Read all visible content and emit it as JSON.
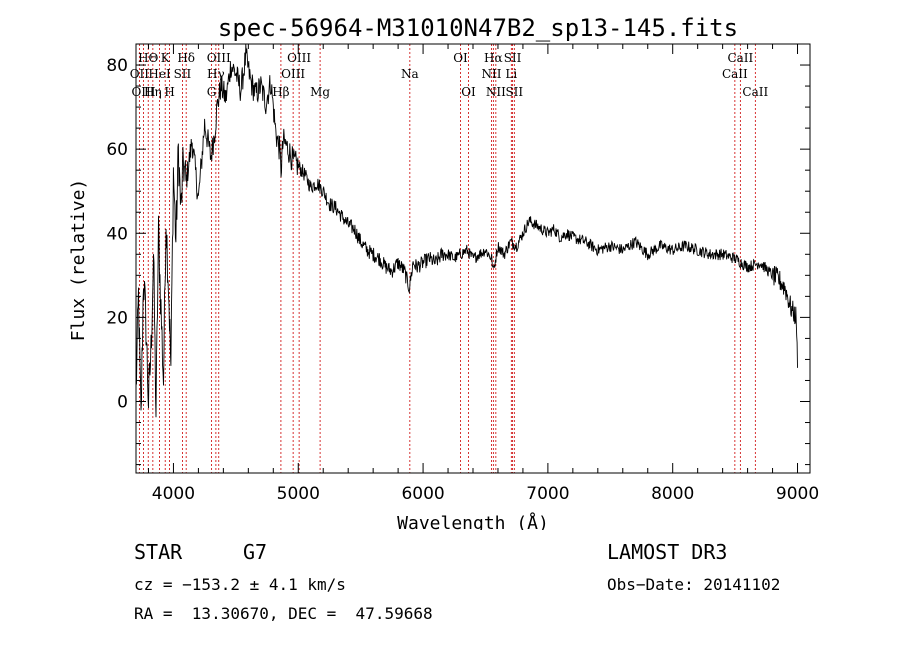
{
  "chart_data": {
    "type": "line",
    "title": "spec-56964-M31010N47B2_sp13-145.fits",
    "xlabel": "Wavelength (Å)",
    "ylabel": "Flux (relative)",
    "xlim": [
      3700,
      9100
    ],
    "ylim": [
      -17,
      85
    ],
    "x_ticks": [
      4000,
      5000,
      6000,
      7000,
      8000,
      9000
    ],
    "y_ticks": [
      0,
      20,
      40,
      60,
      80
    ],
    "series": [
      {
        "name": "flux",
        "x": [
          3700,
          3720,
          3740,
          3760,
          3780,
          3800,
          3820,
          3840,
          3860,
          3880,
          3900,
          3920,
          3940,
          3960,
          3980,
          4000,
          4020,
          4040,
          4060,
          4080,
          4100,
          4150,
          4200,
          4250,
          4300,
          4330,
          4350,
          4380,
          4420,
          4460,
          4500,
          4540,
          4580,
          4620,
          4660,
          4700,
          4740,
          4780,
          4820,
          4850,
          4862,
          4880,
          4920,
          4960,
          5000,
          5050,
          5100,
          5150,
          5200,
          5250,
          5300,
          5350,
          5400,
          5450,
          5500,
          5550,
          5600,
          5650,
          5700,
          5750,
          5800,
          5850,
          5890,
          5920,
          5950,
          6000,
          6050,
          6100,
          6150,
          6200,
          6250,
          6300,
          6350,
          6400,
          6450,
          6500,
          6550,
          6563,
          6600,
          6650,
          6700,
          6750,
          6800,
          6850,
          6900,
          6950,
          7000,
          7050,
          7100,
          7150,
          7200,
          7300,
          7400,
          7500,
          7600,
          7700,
          7800,
          7900,
          8000,
          8100,
          8200,
          8300,
          8400,
          8500,
          8600,
          8700,
          8800,
          8850,
          8900,
          8950,
          8990,
          9000
        ],
        "values": [
          2,
          25,
          -5,
          30,
          18,
          0,
          12,
          35,
          -3,
          40,
          22,
          5,
          44,
          28,
          8,
          55,
          38,
          60,
          45,
          57,
          52,
          62,
          48,
          66,
          58,
          64,
          70,
          75,
          72,
          80,
          78,
          74,
          82,
          76,
          73,
          75,
          71,
          76,
          64,
          60,
          55,
          62,
          60,
          57,
          56,
          54,
          51,
          52,
          50,
          47,
          46,
          44,
          42,
          41,
          38,
          36,
          35,
          34,
          32,
          31,
          33,
          31,
          27,
          33,
          32,
          33,
          34,
          33,
          35,
          35,
          34,
          35,
          36,
          34,
          35,
          36,
          34,
          31,
          37,
          35,
          38,
          37,
          40,
          43,
          42,
          41,
          40,
          41,
          39,
          40,
          39,
          38,
          36,
          37,
          36,
          38,
          35,
          37,
          36,
          37,
          36,
          35,
          35,
          34,
          32,
          33,
          30,
          29,
          27,
          22,
          20,
          8
        ]
      }
    ],
    "emission_lines": [
      {
        "label": "HΘ",
        "wave": 3798,
        "row": 1
      },
      {
        "label": "OII",
        "wave": 3727,
        "row": 2
      },
      {
        "label": "OIII",
        "wave": 3760,
        "row": 3
      },
      {
        "label": "K",
        "wave": 3934,
        "row": 1
      },
      {
        "label": "HeI",
        "wave": 3889,
        "row": 2
      },
      {
        "label": "Hη",
        "wave": 3835,
        "row": 3
      },
      {
        "label": "Hδ",
        "wave": 4102,
        "row": 1
      },
      {
        "label": "SII",
        "wave": 4072,
        "row": 2
      },
      {
        "label": "H",
        "wave": 3969,
        "row": 3
      },
      {
        "label": "OIII",
        "wave": 4363,
        "row": 1
      },
      {
        "label": "Hγ",
        "wave": 4340,
        "row": 2
      },
      {
        "label": "G",
        "wave": 4305,
        "row": 3
      },
      {
        "label": "Hβ",
        "wave": 4861,
        "row": 3
      },
      {
        "label": "OIII",
        "wave": 5007,
        "row": 1
      },
      {
        "label": "OIII",
        "wave": 4959,
        "row": 2
      },
      {
        "label": "Mg",
        "wave": 5175,
        "row": 3
      },
      {
        "label": "Na",
        "wave": 5894,
        "row": 2
      },
      {
        "label": "OI",
        "wave": 6300,
        "row": 1
      },
      {
        "label": "OI",
        "wave": 6364,
        "row": 3
      },
      {
        "label": "Hα",
        "wave": 6563,
        "row": 1
      },
      {
        "label": "NII",
        "wave": 6548,
        "row": 2
      },
      {
        "label": "NII",
        "wave": 6583,
        "row": 3
      },
      {
        "label": "SII",
        "wave": 6717,
        "row": 1
      },
      {
        "label": "Li",
        "wave": 6707,
        "row": 2
      },
      {
        "label": "SII",
        "wave": 6731,
        "row": 3
      },
      {
        "label": "CaII",
        "wave": 8542,
        "row": 1
      },
      {
        "label": "CaII",
        "wave": 8498,
        "row": 2
      },
      {
        "label": "CaII",
        "wave": 8662,
        "row": 3
      }
    ]
  },
  "info": {
    "class": "STAR",
    "subclass": "G7",
    "survey": "LAMOST DR3",
    "cz": "cz = −153.2 ± 4.1 km/s",
    "obs_date": "Obs−Date: 20141102",
    "coords": "RA =  13.30670, DEC =  47.59668"
  },
  "colors": {
    "axis": "#000000",
    "spectrum": "#000000",
    "line_marker": "#cc0000"
  }
}
